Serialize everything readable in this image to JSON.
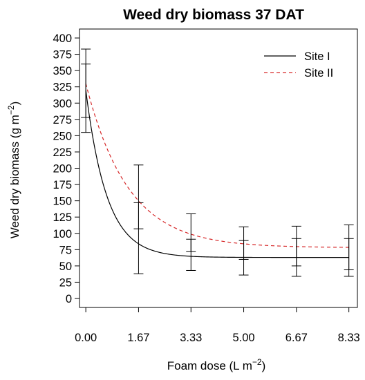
{
  "chart_data": {
    "type": "line",
    "title": "Weed dry biomass 37 DAT",
    "xlabel_main": "Foam dose (L m",
    "xlabel_sup": "−2",
    "xlabel_end": ")",
    "ylabel_main": "Weed dry biomass (g m",
    "ylabel_sup": "−2",
    "ylabel_end": ")",
    "xlim": [
      -0.2,
      8.6
    ],
    "ylim": [
      0,
      400
    ],
    "x_ticks": [
      0,
      1.67,
      3.33,
      5.0,
      6.67,
      8.33
    ],
    "x_tick_labels": [
      "0.00",
      "1.67",
      "3.33",
      "5.00",
      "6.67",
      "8.33"
    ],
    "y_ticks": [
      0,
      25,
      50,
      75,
      100,
      125,
      150,
      175,
      200,
      225,
      250,
      275,
      300,
      325,
      350,
      375,
      400
    ],
    "y_tick_labels": [
      "0",
      "25",
      "50",
      "75",
      "100",
      "125",
      "150",
      "175",
      "200",
      "225",
      "250",
      "275",
      "300",
      "325",
      "350",
      "375",
      "400"
    ],
    "legend_position": "top-right",
    "series": [
      {
        "name": "Site I",
        "color": "#000000",
        "dash": "solid",
        "model": {
          "asymptote": 63,
          "amplitude": 257,
          "rate": 1.5
        },
        "points": [
          {
            "x": 0,
            "low": 255,
            "high": 360
          },
          {
            "x": 1.67,
            "low": 38,
            "high": 147
          },
          {
            "x": 3.33,
            "low": 43,
            "high": 91
          },
          {
            "x": 5.0,
            "low": 36,
            "high": 89
          },
          {
            "x": 6.67,
            "low": 34,
            "high": 92
          },
          {
            "x": 8.33,
            "low": 34,
            "high": 92
          }
        ]
      },
      {
        "name": "Site II",
        "color": "#d62728",
        "dash": "dashed",
        "model": {
          "asymptote": 78,
          "amplitude": 252,
          "rate": 0.75
        },
        "points": [
          {
            "x": 0,
            "low": 278,
            "high": 383
          },
          {
            "x": 1.67,
            "low": 107,
            "high": 205
          },
          {
            "x": 3.33,
            "low": 72,
            "high": 130
          },
          {
            "x": 5.0,
            "low": 60,
            "high": 110
          },
          {
            "x": 6.67,
            "low": 50,
            "high": 111
          },
          {
            "x": 8.33,
            "low": 44,
            "high": 113
          }
        ]
      }
    ]
  }
}
